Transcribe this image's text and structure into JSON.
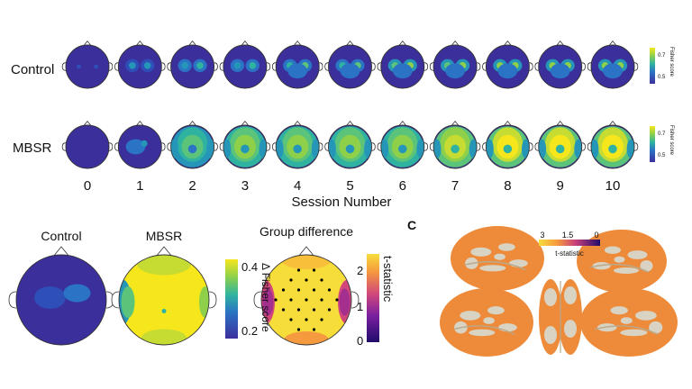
{
  "figure": {
    "row_labels": {
      "control": "Control",
      "mbsr": "MBSR"
    },
    "session_numbers": [
      "0",
      "1",
      "2",
      "3",
      "4",
      "5",
      "6",
      "7",
      "8",
      "9",
      "10"
    ],
    "session_axis_label": "Session Number",
    "session_colorbar": {
      "title": "Fisher score",
      "ticks": [
        "0.7",
        "0.5"
      ]
    },
    "panel_b": {
      "titles": {
        "control": "Control",
        "mbsr": "MBSR",
        "difference": "Group difference"
      },
      "delta_colorbar": {
        "title": "Δ Fisher score",
        "ticks": [
          "0.4",
          "0.2"
        ]
      },
      "t_colorbar": {
        "title": "t-statistic",
        "ticks": [
          "2",
          "1",
          "0"
        ]
      }
    },
    "panel_c": {
      "letter": "C",
      "colorbar": {
        "title": "t-statistic",
        "ticks": [
          "3",
          "1.5",
          "0"
        ]
      }
    },
    "control_levels": [
      0.05,
      0.25,
      0.3,
      0.3,
      0.4,
      0.4,
      0.45,
      0.45,
      0.5,
      0.5,
      0.5
    ],
    "mbsr_levels": [
      0.0,
      0.25,
      0.55,
      0.65,
      0.7,
      0.72,
      0.7,
      0.85,
      0.88,
      0.9,
      0.9
    ],
    "colors": {
      "viridis_low": "#3b2f9c",
      "viridis_mid": "#2fb3a0",
      "viridis_high": "#f6e61c",
      "plasma_low": "#1f0c6b",
      "plasma_high": "#f7dd3a",
      "cortex_orange": "#ee8b3a",
      "cortex_gray": "#d9d3c4"
    }
  }
}
